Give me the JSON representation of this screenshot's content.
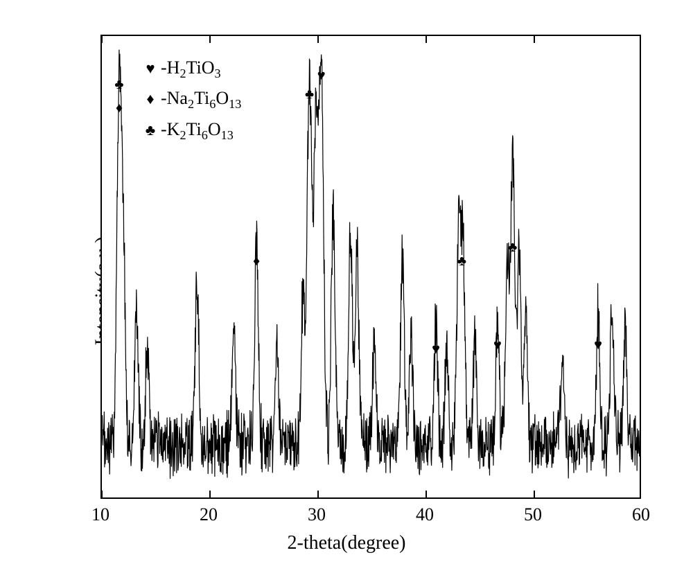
{
  "chart": {
    "type": "xrd-line",
    "background_color": "#ffffff",
    "line_color": "#000000",
    "border_color": "#000000",
    "border_width": 2.5,
    "line_width": 1.2,
    "xlabel": "2-theta(degree)",
    "ylabel": "Intensity(a.u.)",
    "label_fontsize": 28,
    "tick_fontsize": 26,
    "xlim": [
      10,
      60
    ],
    "ylim": [
      0,
      100
    ],
    "xticks": [
      10,
      20,
      30,
      40,
      50,
      60
    ],
    "xtick_labels": [
      "10",
      "20",
      "30",
      "40",
      "50",
      "60"
    ],
    "legend": {
      "items": [
        {
          "symbol": "♥",
          "label_html": "-H₂TiO₃",
          "label": "H2TiO3"
        },
        {
          "symbol": "♦",
          "label_html": "-Na₂Ti₆O₁₃",
          "label": "Na2Ti6O13"
        },
        {
          "symbol": "♣",
          "label_html": "-K₂Ti₆O₁₃",
          "label": "K2Ti6O13"
        }
      ],
      "position": "upper-left",
      "fontsize": 26
    },
    "markers": [
      {
        "x": 11.6,
        "y": 88,
        "symbol": "♣"
      },
      {
        "x": 11.6,
        "y": 83,
        "symbol": "♦"
      },
      {
        "x": 24.3,
        "y": 50,
        "symbol": "♦"
      },
      {
        "x": 29.2,
        "y": 86,
        "symbol": "♣"
      },
      {
        "x": 30.3,
        "y": 90,
        "symbol": "♥"
      },
      {
        "x": 40.9,
        "y": 31,
        "symbol": "♥"
      },
      {
        "x": 43.3,
        "y": 50,
        "symbol": "♣"
      },
      {
        "x": 46.6,
        "y": 32,
        "symbol": "♥"
      },
      {
        "x": 48.0,
        "y": 53,
        "symbol": "♣"
      },
      {
        "x": 55.9,
        "y": 32,
        "symbol": "♥"
      }
    ],
    "peaks": [
      {
        "x": 11.6,
        "h": 78
      },
      {
        "x": 12.0,
        "h": 39
      },
      {
        "x": 13.2,
        "h": 30
      },
      {
        "x": 14.2,
        "h": 22
      },
      {
        "x": 18.8,
        "h": 35
      },
      {
        "x": 22.2,
        "h": 24
      },
      {
        "x": 24.3,
        "h": 44
      },
      {
        "x": 26.2,
        "h": 20
      },
      {
        "x": 28.6,
        "h": 32
      },
      {
        "x": 29.2,
        "h": 79
      },
      {
        "x": 29.8,
        "h": 68
      },
      {
        "x": 30.3,
        "h": 80
      },
      {
        "x": 31.4,
        "h": 50
      },
      {
        "x": 33.0,
        "h": 45
      },
      {
        "x": 33.6,
        "h": 42
      },
      {
        "x": 35.2,
        "h": 22
      },
      {
        "x": 37.8,
        "h": 40
      },
      {
        "x": 38.6,
        "h": 24
      },
      {
        "x": 40.9,
        "h": 26
      },
      {
        "x": 41.9,
        "h": 22
      },
      {
        "x": 43.0,
        "h": 45
      },
      {
        "x": 43.4,
        "h": 42
      },
      {
        "x": 44.5,
        "h": 24
      },
      {
        "x": 46.6,
        "h": 26
      },
      {
        "x": 47.5,
        "h": 38
      },
      {
        "x": 48.0,
        "h": 62
      },
      {
        "x": 48.6,
        "h": 42
      },
      {
        "x": 49.2,
        "h": 28
      },
      {
        "x": 52.6,
        "h": 22
      },
      {
        "x": 55.9,
        "h": 28
      },
      {
        "x": 57.2,
        "h": 30
      },
      {
        "x": 58.4,
        "h": 26
      }
    ],
    "baseline": 12,
    "noise_amplitude": 6
  }
}
